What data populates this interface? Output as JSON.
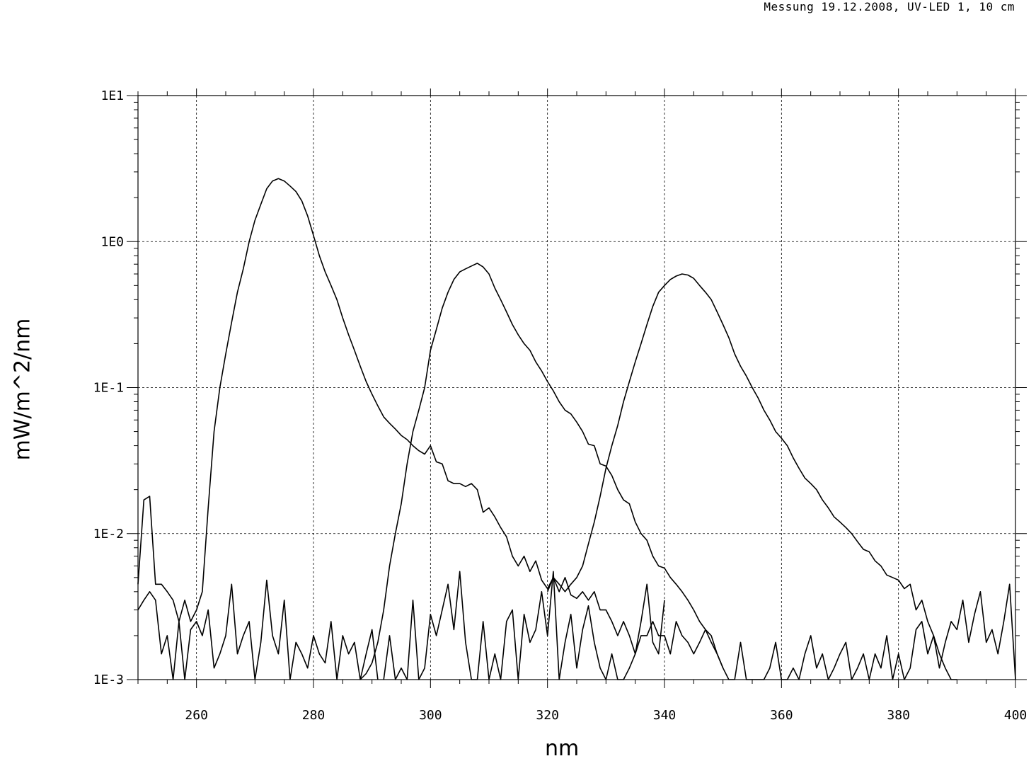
{
  "header": {
    "title": "Messung 19.12.2008,  UV-LED 1,  10 cm"
  },
  "chart_data": {
    "type": "line",
    "title": "Messung 19.12.2008,  UV-LED 1,  10 cm",
    "xlabel": "nm",
    "ylabel": "mW/m^2/nm",
    "xlim": [
      250,
      400
    ],
    "ylim": [
      0.001,
      10
    ],
    "yscale": "log",
    "grid": true,
    "x_ticks": [
      260,
      280,
      300,
      320,
      340,
      360,
      380,
      400
    ],
    "y_ticks": [
      {
        "value": 10,
        "label": "1E1"
      },
      {
        "value": 1,
        "label": "1E0"
      },
      {
        "value": 0.1,
        "label": "1E-1"
      },
      {
        "value": 0.01,
        "label": "1E-2"
      },
      {
        "value": 0.001,
        "label": "1E-3"
      }
    ],
    "series": [
      {
        "x": [
          250,
          251,
          252,
          253,
          254,
          255,
          256,
          257,
          258,
          259,
          260,
          261,
          262,
          263,
          264,
          265,
          266,
          267,
          268,
          269,
          270,
          271,
          272,
          273,
          274,
          275,
          276,
          277,
          278,
          279,
          280,
          281,
          282,
          283,
          284,
          285,
          286,
          287,
          288,
          289,
          290,
          291,
          292,
          293,
          294,
          295,
          296,
          297,
          298,
          299,
          300,
          301,
          302,
          303,
          304,
          305,
          306,
          307,
          308,
          309,
          310,
          311,
          312,
          313,
          314,
          315,
          316,
          317,
          318,
          319,
          320,
          321,
          322,
          323,
          324,
          325,
          326,
          327,
          328,
          329,
          330,
          331,
          332,
          333,
          334,
          335,
          336,
          337,
          338,
          339,
          340,
          341,
          342,
          343,
          344,
          345,
          346,
          347,
          348,
          349,
          350
        ],
        "values": [
          0.0045,
          0.017,
          0.018,
          0.0045,
          0.0045,
          0.004,
          0.0035,
          0.0025,
          0.0035,
          0.0025,
          0.003,
          0.004,
          0.015,
          0.05,
          0.1,
          0.17,
          0.28,
          0.45,
          0.65,
          1.0,
          1.4,
          1.8,
          2.3,
          2.6,
          2.7,
          2.6,
          2.4,
          2.2,
          1.9,
          1.5,
          1.1,
          0.8,
          0.62,
          0.5,
          0.4,
          0.3,
          0.23,
          0.18,
          0.14,
          0.11,
          0.09,
          0.075,
          0.063,
          0.057,
          0.052,
          0.047,
          0.044,
          0.04,
          0.037,
          0.035,
          0.04,
          0.031,
          0.03,
          0.023,
          0.022,
          0.022,
          0.021,
          0.022,
          0.02,
          0.014,
          0.015,
          0.013,
          0.011,
          0.0095,
          0.007,
          0.006,
          0.007,
          0.0055,
          0.0065,
          0.0048,
          0.0042,
          0.005,
          0.004,
          0.005,
          0.0038,
          0.0036,
          0.004,
          0.0035,
          0.004,
          0.003,
          0.003,
          0.0025,
          0.002,
          0.0025,
          0.002,
          0.0015,
          0.002,
          0.002,
          0.0025,
          0.002,
          0.002,
          0.0015,
          0.0025,
          0.002,
          0.0018,
          0.0015,
          0.0018,
          0.0022,
          0.0018,
          0.0015,
          0.0012
        ]
      },
      {
        "x": [
          288,
          289,
          290,
          291,
          292,
          293,
          294,
          295,
          296,
          297,
          298,
          299,
          300,
          301,
          302,
          303,
          304,
          305,
          306,
          307,
          308,
          309,
          310,
          311,
          312,
          313,
          314,
          315,
          316,
          317,
          318,
          319,
          320,
          321,
          322,
          323,
          324,
          325,
          326,
          327,
          328,
          329,
          330,
          331,
          332,
          333,
          334,
          335,
          336,
          337,
          338,
          339,
          340,
          341,
          342,
          343,
          344,
          345,
          346,
          347,
          348,
          349,
          350,
          351,
          352
        ],
        "values": [
          0.001,
          0.0011,
          0.0013,
          0.0018,
          0.003,
          0.006,
          0.01,
          0.016,
          0.03,
          0.05,
          0.07,
          0.1,
          0.18,
          0.25,
          0.35,
          0.45,
          0.55,
          0.62,
          0.65,
          0.68,
          0.71,
          0.67,
          0.6,
          0.48,
          0.4,
          0.33,
          0.27,
          0.23,
          0.2,
          0.18,
          0.15,
          0.13,
          0.11,
          0.095,
          0.08,
          0.07,
          0.066,
          0.058,
          0.05,
          0.041,
          0.04,
          0.03,
          0.029,
          0.025,
          0.02,
          0.017,
          0.016,
          0.012,
          0.01,
          0.009,
          0.007,
          0.006,
          0.0058,
          0.005,
          0.0045,
          0.004,
          0.0035,
          0.003,
          0.0025,
          0.0022,
          0.002,
          0.0015,
          0.0012,
          0.001,
          0.001
        ]
      },
      {
        "x": [
          320,
          321,
          322,
          323,
          324,
          325,
          326,
          327,
          328,
          329,
          330,
          331,
          332,
          333,
          334,
          335,
          336,
          337,
          338,
          339,
          340,
          341,
          342,
          343,
          344,
          345,
          346,
          347,
          348,
          349,
          350,
          351,
          352,
          353,
          354,
          355,
          356,
          357,
          358,
          359,
          360,
          361,
          362,
          363,
          364,
          365,
          366,
          367,
          368,
          369,
          370,
          371,
          372,
          373,
          374,
          375,
          376,
          377,
          378,
          379,
          380,
          381,
          382,
          383,
          384,
          385,
          386,
          387,
          388,
          389,
          390
        ],
        "values": [
          0.004,
          0.005,
          0.0045,
          0.004,
          0.0045,
          0.005,
          0.006,
          0.0085,
          0.012,
          0.018,
          0.028,
          0.04,
          0.055,
          0.08,
          0.11,
          0.15,
          0.2,
          0.27,
          0.36,
          0.45,
          0.5,
          0.55,
          0.58,
          0.6,
          0.59,
          0.56,
          0.5,
          0.45,
          0.4,
          0.33,
          0.27,
          0.22,
          0.17,
          0.14,
          0.12,
          0.1,
          0.085,
          0.07,
          0.06,
          0.05,
          0.045,
          0.04,
          0.033,
          0.028,
          0.024,
          0.022,
          0.02,
          0.017,
          0.015,
          0.013,
          0.012,
          0.011,
          0.01,
          0.0088,
          0.0078,
          0.0075,
          0.0065,
          0.006,
          0.0052,
          0.005,
          0.0048,
          0.0042,
          0.0045,
          0.003,
          0.0035,
          0.0025,
          0.002,
          0.0015,
          0.0012,
          0.001,
          0.001
        ]
      },
      {
        "x": [
          250,
          251,
          252,
          253,
          254,
          255,
          256,
          257,
          258,
          259,
          260,
          261,
          262,
          263,
          264,
          265,
          266,
          267,
          268,
          269,
          270,
          271,
          272,
          273,
          274,
          275,
          276,
          277,
          278,
          279,
          280,
          281,
          282,
          283,
          284,
          285,
          286,
          287,
          288,
          289,
          290,
          291
        ],
        "values": [
          0.003,
          0.0035,
          0.004,
          0.0035,
          0.0015,
          0.002,
          0.001,
          0.0025,
          0.001,
          0.0022,
          0.0025,
          0.002,
          0.003,
          0.0012,
          0.0015,
          0.002,
          0.0045,
          0.0015,
          0.002,
          0.0025,
          0.001,
          0.0018,
          0.0048,
          0.002,
          0.0015,
          0.0035,
          0.001,
          0.0018,
          0.0015,
          0.0012,
          0.002,
          0.0015,
          0.0013,
          0.0025,
          0.001,
          0.002,
          0.0015,
          0.0018,
          0.001,
          0.0015,
          0.0022,
          0.001
        ]
      },
      {
        "x": [
          292,
          293,
          294,
          295,
          296,
          297,
          298,
          299,
          300,
          301,
          302,
          303,
          304,
          305,
          306,
          307,
          308,
          309,
          310,
          311,
          312,
          313,
          314,
          315,
          316,
          317,
          318,
          319,
          320,
          321,
          322,
          323,
          324,
          325,
          326,
          327,
          328,
          329,
          330,
          331,
          332,
          333,
          334,
          335,
          336,
          337,
          338,
          339,
          340
        ],
        "values": [
          0.001,
          0.002,
          0.001,
          0.0012,
          0.001,
          0.0035,
          0.001,
          0.0012,
          0.0028,
          0.002,
          0.003,
          0.0045,
          0.0022,
          0.0055,
          0.0018,
          0.001,
          0.001,
          0.0025,
          0.001,
          0.0015,
          0.001,
          0.0025,
          0.003,
          0.001,
          0.0028,
          0.0018,
          0.0022,
          0.004,
          0.002,
          0.0055,
          0.001,
          0.0018,
          0.0028,
          0.0012,
          0.0022,
          0.0032,
          0.0018,
          0.0012,
          0.001,
          0.0015,
          0.001,
          0.001,
          0.0012,
          0.0015,
          0.0025,
          0.0045,
          0.0018,
          0.0015,
          0.0035
        ]
      },
      {
        "x": [
          352,
          353,
          354,
          355,
          356,
          357,
          358,
          359,
          360,
          361,
          362,
          363,
          364,
          365,
          366,
          367,
          368,
          369,
          370,
          371,
          372,
          373,
          374,
          375,
          376,
          377,
          378,
          379,
          380,
          381,
          382,
          383,
          384,
          385,
          386,
          387,
          388,
          389,
          390,
          391,
          392,
          393,
          394,
          395,
          396,
          397,
          398,
          399,
          400
        ],
        "values": [
          0.001,
          0.0018,
          0.001,
          0.001,
          0.001,
          0.001,
          0.0012,
          0.0018,
          0.001,
          0.001,
          0.0012,
          0.001,
          0.0015,
          0.002,
          0.0012,
          0.0015,
          0.001,
          0.0012,
          0.0015,
          0.0018,
          0.001,
          0.0012,
          0.0015,
          0.001,
          0.0015,
          0.0012,
          0.002,
          0.001,
          0.0015,
          0.001,
          0.0012,
          0.0022,
          0.0025,
          0.0015,
          0.002,
          0.0012,
          0.0018,
          0.0025,
          0.0022,
          0.0035,
          0.0018,
          0.0028,
          0.004,
          0.0018,
          0.0022,
          0.0015,
          0.0025,
          0.0045,
          0.001
        ]
      }
    ]
  }
}
